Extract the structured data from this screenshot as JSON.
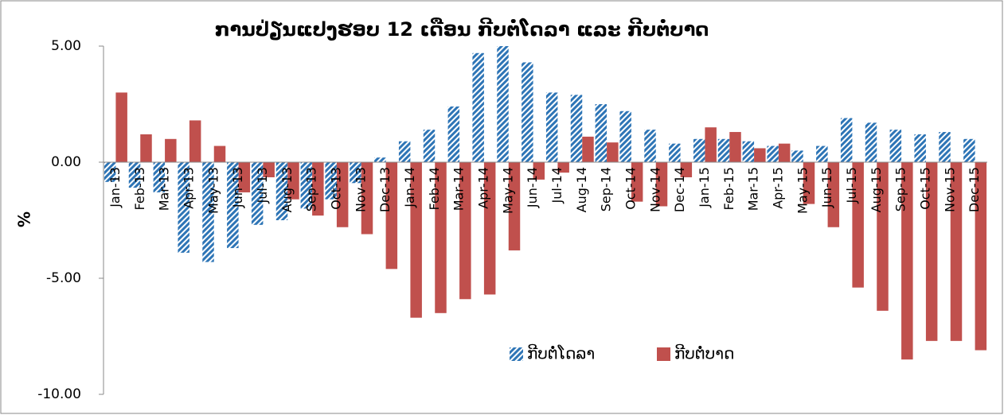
{
  "chart_data": {
    "type": "bar",
    "title": "ການປ່ຽນແປງຮອບ 12 ເດືອນ ກີບຕໍ່ໂດລາ ແລະ ກີບຕໍ່ບາດ",
    "y_label": "%",
    "categories": [
      "Jan-13",
      "Feb-13",
      "Mar-13",
      "Apr-13",
      "May-13",
      "Jun-13",
      "Jul-13",
      "Aug-13",
      "Sep-13",
      "Oct-13",
      "Nov-13",
      "Dec-13",
      "Jan-14",
      "Feb-14",
      "Mar-14",
      "Apr-14",
      "May-14",
      "Jun-14",
      "Jul-14",
      "Aug-14",
      "Sep-14",
      "Oct-14",
      "Nov-14",
      "Dec-14",
      "Jan-15",
      "Feb-15",
      "Mar-15",
      "Apr-15",
      "May-15",
      "Jun-15",
      "Jul-15",
      "Aug-15",
      "Sep-15",
      "Oct-15",
      "Nov-15",
      "Dec-15"
    ],
    "series": [
      {
        "name": "ກີບຕໍ່ໂດລາ",
        "color": "#2e75b6",
        "values": [
          -0.85,
          -1.1,
          -1.3,
          -3.9,
          -4.3,
          -3.7,
          -2.7,
          -2.5,
          -2.0,
          -1.6,
          -0.9,
          0.2,
          0.9,
          1.4,
          2.4,
          4.7,
          5.0,
          4.3,
          3.0,
          2.9,
          2.5,
          2.2,
          1.4,
          0.8,
          1.0,
          1.0,
          0.9,
          0.7,
          0.5,
          0.7,
          1.9,
          1.7,
          1.4,
          1.2,
          1.3,
          1.0
        ]
      },
      {
        "name": "ກີບຕໍ່ບາດ",
        "color": "#c0504d",
        "values": [
          3.0,
          1.2,
          1.0,
          1.8,
          0.7,
          -1.3,
          -0.65,
          -1.6,
          -2.3,
          -2.8,
          -3.1,
          -4.6,
          -6.7,
          -6.5,
          -5.9,
          -5.7,
          -3.8,
          -0.75,
          -0.45,
          1.1,
          0.85,
          -1.7,
          -1.9,
          -0.65,
          1.5,
          1.3,
          0.6,
          0.8,
          -1.8,
          -2.8,
          -5.4,
          -6.4,
          -8.5,
          -7.7,
          -7.7,
          -8.1
        ]
      }
    ],
    "ylim": [
      -10,
      5
    ],
    "yticks": [
      {
        "value": 5,
        "label": "5.00"
      },
      {
        "value": 0,
        "label": "0.00"
      },
      {
        "value": -5,
        "label": "-5.00"
      },
      {
        "value": -10,
        "label": "-10.00"
      }
    ],
    "legend": "bottom-center"
  }
}
